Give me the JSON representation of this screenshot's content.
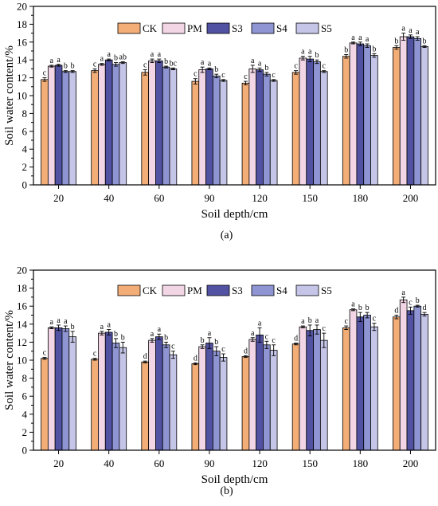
{
  "legend": [
    {
      "name": "CK",
      "color": "#F3AE78"
    },
    {
      "name": "PM",
      "color": "#F2D6E6"
    },
    {
      "name": "S3",
      "color": "#5252A2"
    },
    {
      "name": "S4",
      "color": "#8E95D2"
    },
    {
      "name": "S5",
      "color": "#C5C5E8"
    }
  ],
  "chart_data": [
    {
      "type": "bar",
      "caption": "(a)",
      "xlabel": "Soil depth/cm",
      "ylabel": "Soil water content/%",
      "ylim": [
        0,
        20
      ],
      "yticks": [
        0,
        2,
        4,
        6,
        8,
        10,
        12,
        14,
        16,
        18,
        20
      ],
      "categories": [
        "20",
        "40",
        "60",
        "90",
        "120",
        "150",
        "180",
        "200"
      ],
      "series": [
        {
          "name": "CK",
          "values": [
            11.8,
            12.8,
            12.6,
            11.6,
            11.4,
            12.6,
            14.4,
            15.4
          ],
          "errors": [
            0.2,
            0.2,
            0.3,
            0.3,
            0.2,
            0.2,
            0.2,
            0.2
          ],
          "labels": [
            "c",
            "c",
            "c",
            "c",
            "c",
            "c",
            "b",
            "b"
          ]
        },
        {
          "name": "PM",
          "values": [
            13.3,
            13.5,
            13.9,
            12.9,
            13.0,
            14.2,
            15.9,
            16.6
          ],
          "errors": [
            0.1,
            0.1,
            0.2,
            0.3,
            0.4,
            0.2,
            0.1,
            0.4
          ],
          "labels": [
            "a",
            "a",
            "a",
            "a",
            "a",
            "a",
            "a",
            "a"
          ]
        },
        {
          "name": "S3",
          "values": [
            13.4,
            14.0,
            13.9,
            13.0,
            12.9,
            14.1,
            15.8,
            16.6
          ],
          "errors": [
            0.1,
            0.1,
            0.2,
            0.1,
            0.2,
            0.3,
            0.2,
            0.2
          ],
          "labels": [
            "a",
            "a",
            "a",
            "a",
            "a",
            "a",
            "a",
            "a"
          ]
        },
        {
          "name": "S4",
          "values": [
            12.7,
            13.5,
            13.2,
            12.2,
            12.4,
            13.8,
            15.6,
            16.4
          ],
          "errors": [
            0.1,
            0.2,
            0.1,
            0.2,
            0.2,
            0.2,
            0.2,
            0.2
          ],
          "labels": [
            "b",
            "b",
            "b",
            "b",
            "b",
            "b",
            "a",
            "a"
          ]
        },
        {
          "name": "S5",
          "values": [
            12.7,
            13.7,
            13.0,
            11.7,
            11.7,
            12.7,
            14.5,
            15.5
          ],
          "errors": [
            0.1,
            0.1,
            0.1,
            0.1,
            0.1,
            0.1,
            0.2,
            0.1
          ],
          "labels": [
            "b",
            "ab",
            "bc",
            "c",
            "c",
            "c",
            "b",
            "b"
          ]
        }
      ]
    },
    {
      "type": "bar",
      "caption": "(b)",
      "xlabel": "Soil depth/cm",
      "ylabel": "Soil water content/%",
      "ylim": [
        0,
        20
      ],
      "yticks": [
        0,
        2,
        4,
        6,
        8,
        10,
        12,
        14,
        16,
        18,
        20
      ],
      "categories": [
        "20",
        "40",
        "60",
        "90",
        "120",
        "150",
        "180",
        "200"
      ],
      "series": [
        {
          "name": "CK",
          "values": [
            10.2,
            10.1,
            9.8,
            9.6,
            10.4,
            11.8,
            13.6,
            14.8
          ],
          "errors": [
            0.1,
            0.1,
            0.1,
            0.1,
            0.1,
            0.1,
            0.2,
            0.2
          ],
          "labels": [
            "c",
            "c",
            "d",
            "d",
            "d",
            "d",
            "c",
            "d"
          ]
        },
        {
          "name": "PM",
          "values": [
            13.6,
            13.0,
            12.2,
            11.5,
            12.3,
            13.7,
            15.6,
            16.7
          ],
          "errors": [
            0.1,
            0.2,
            0.2,
            0.2,
            0.2,
            0.1,
            0.1,
            0.3
          ],
          "labels": [
            "a",
            "a",
            "a",
            "b",
            "a",
            "a",
            "a",
            "a"
          ]
        },
        {
          "name": "S3",
          "values": [
            13.6,
            13.1,
            12.6,
            11.9,
            12.8,
            13.3,
            14.8,
            15.5
          ],
          "errors": [
            0.3,
            0.3,
            0.3,
            0.6,
            0.8,
            0.6,
            0.5,
            0.4
          ],
          "labels": [
            "a",
            "a",
            "a",
            "a",
            "a",
            "b",
            "b",
            "c"
          ]
        },
        {
          "name": "S4",
          "values": [
            13.5,
            11.9,
            11.7,
            11.0,
            11.7,
            13.4,
            15.0,
            16.0
          ],
          "errors": [
            0.3,
            0.5,
            0.3,
            0.5,
            0.4,
            0.5,
            0.3,
            0.1
          ],
          "labels": [
            "a",
            "b",
            "b",
            "b",
            "c",
            "a",
            "b",
            "b"
          ]
        },
        {
          "name": "S5",
          "values": [
            12.6,
            11.4,
            10.6,
            10.3,
            11.1,
            12.2,
            13.7,
            15.1
          ],
          "errors": [
            0.6,
            0.6,
            0.4,
            0.4,
            0.6,
            0.8,
            0.4,
            0.2
          ],
          "labels": [
            "b",
            "b",
            "c",
            "c",
            "c",
            "c",
            "c",
            "d"
          ]
        }
      ]
    }
  ]
}
